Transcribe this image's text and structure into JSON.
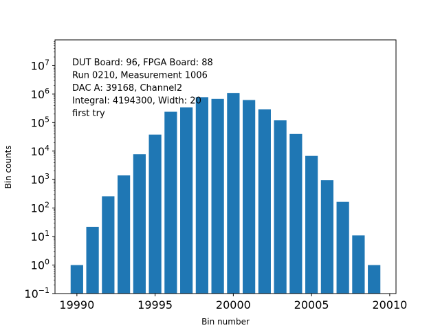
{
  "chart_data": {
    "type": "bar",
    "xlabel": "Bin number",
    "ylabel": "Bin counts",
    "yscale": "log",
    "xlim": [
      19988.6,
      20010.4
    ],
    "ylim": [
      0.1,
      80000000
    ],
    "grid": false,
    "bar_color": "#1f77b4",
    "x_ticks": [
      19990,
      19995,
      20000,
      20005,
      20010
    ],
    "y_ticks": [
      {
        "value": 0.1,
        "base": "10",
        "exp": "−1"
      },
      {
        "value": 1,
        "base": "10",
        "exp": "0"
      },
      {
        "value": 10,
        "base": "10",
        "exp": "1"
      },
      {
        "value": 100,
        "base": "10",
        "exp": "2"
      },
      {
        "value": 1000,
        "base": "10",
        "exp": "3"
      },
      {
        "value": 10000,
        "base": "10",
        "exp": "4"
      },
      {
        "value": 100000,
        "base": "10",
        "exp": "5"
      },
      {
        "value": 1000000,
        "base": "10",
        "exp": "6"
      },
      {
        "value": 10000000,
        "base": "10",
        "exp": "7"
      }
    ],
    "x": [
      19990,
      19991,
      19992,
      19993,
      19994,
      19995,
      19996,
      19997,
      19998,
      19999,
      20000,
      20001,
      20002,
      20003,
      20004,
      20005,
      20006,
      20007,
      20008,
      20009
    ],
    "values": [
      1,
      22,
      260,
      1400,
      7800,
      38000,
      240000,
      340000,
      780000,
      680000,
      1100000,
      620000,
      290000,
      120000,
      40000,
      6800,
      950,
      165,
      11,
      1
    ],
    "annotation_lines": [
      "DUT Board: 96, FPGA Board: 88",
      "Run 0210, Measurement 1006",
      "DAC A: 39168, Channel2",
      "Integral: 4194300, Width: 20",
      "first try"
    ]
  }
}
